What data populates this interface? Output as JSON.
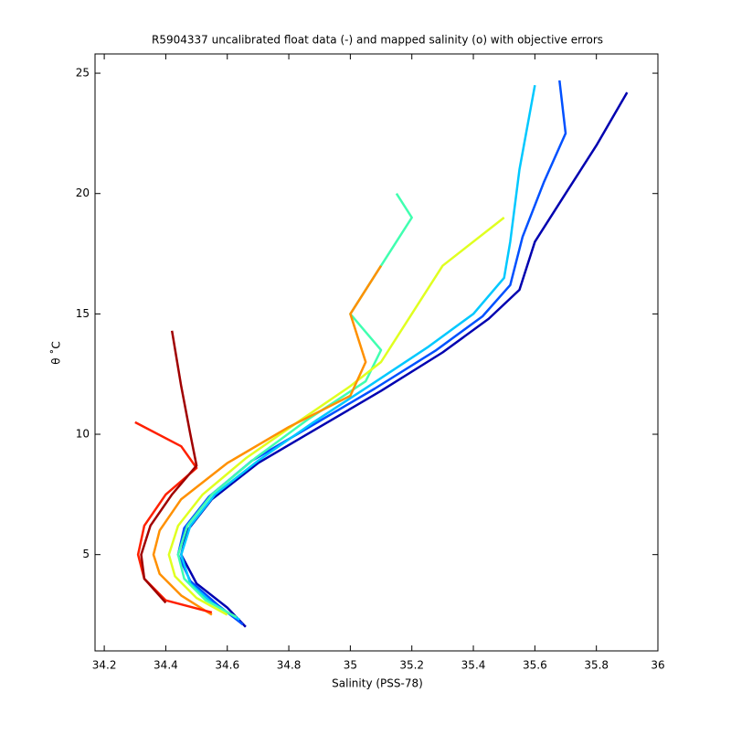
{
  "chart_data": {
    "type": "line",
    "title": "R5904337 uncalibrated float data (-) and mapped salinity (o) with objective errors",
    "x_label": "Salinity (PSS-78)",
    "y_label": "θ ˚C",
    "xlim": [
      34.17,
      36.0
    ],
    "ylim": [
      1,
      25.8
    ],
    "xticks": [
      34.2,
      34.4,
      34.6,
      34.8,
      35,
      35.2,
      35.4,
      35.6,
      35.8,
      36
    ],
    "yticks": [
      5,
      10,
      15,
      20,
      25
    ],
    "series": [
      {
        "color": "#0000b0",
        "x": [
          34.66,
          34.6,
          34.5,
          34.45,
          34.47,
          34.55,
          34.7,
          34.9,
          35.1,
          35.3,
          35.45,
          35.55,
          35.6,
          35.7,
          35.8,
          35.9
        ],
        "y": [
          2,
          2.8,
          3.8,
          5,
          6,
          7.3,
          8.8,
          10.3,
          11.8,
          13.4,
          14.8,
          16,
          18,
          20,
          22,
          24.2
        ]
      },
      {
        "color": "#0050ff",
        "x": [
          34.65,
          34.57,
          34.48,
          34.44,
          34.46,
          34.54,
          34.68,
          34.88,
          35.08,
          35.28,
          35.43,
          35.52,
          35.56,
          35.63,
          35.7,
          35.68
        ],
        "y": [
          2.1,
          2.9,
          3.9,
          5,
          6.1,
          7.4,
          8.9,
          10.4,
          11.9,
          13.5,
          14.9,
          16.2,
          18.2,
          20.5,
          22.5,
          24.7
        ]
      },
      {
        "color": "#00c8ff",
        "x": [
          34.64,
          34.55,
          34.48,
          34.45,
          34.48,
          34.56,
          34.7,
          34.88,
          35.06,
          35.25,
          35.4,
          35.5,
          35.52,
          35.55,
          35.6
        ],
        "y": [
          2.3,
          3,
          3.8,
          5,
          6.2,
          7.5,
          8.9,
          10.5,
          12,
          13.6,
          15,
          16.5,
          18,
          21,
          24.5
        ]
      },
      {
        "color": "#40ffb0",
        "x": [
          34.63,
          34.53,
          34.46,
          34.44,
          34.47,
          34.55,
          34.69,
          34.86,
          35.05,
          35.1,
          35.0,
          35.1,
          35.2,
          35.15
        ],
        "y": [
          2.4,
          3.1,
          4,
          5,
          6.2,
          7.5,
          9,
          10.6,
          12.2,
          13.5,
          15,
          17,
          19,
          20
        ]
      },
      {
        "color": "#e0ff20",
        "x": [
          34.6,
          34.5,
          34.43,
          34.41,
          34.44,
          34.52,
          34.66,
          34.84,
          35.0,
          35.1,
          35.3,
          35.5
        ],
        "y": [
          2.5,
          3.2,
          4.1,
          5,
          6.2,
          7.5,
          9,
          10.6,
          12,
          13,
          17,
          19
        ]
      },
      {
        "color": "#ff9000",
        "x": [
          34.55,
          34.45,
          34.38,
          34.36,
          34.38,
          34.45,
          34.6,
          34.8,
          35.0,
          35.05,
          35.0,
          35.1
        ],
        "y": [
          2.5,
          3.3,
          4.2,
          5,
          6,
          7.3,
          8.8,
          10.3,
          11.6,
          13,
          15,
          17
        ]
      },
      {
        "color": "#ff2000",
        "x": [
          34.55,
          34.4,
          34.33,
          34.31,
          34.33,
          34.4,
          34.5,
          34.45,
          34.3
        ],
        "y": [
          2.6,
          3.1,
          4,
          5,
          6.2,
          7.5,
          8.6,
          9.5,
          10.5
        ]
      },
      {
        "color": "#a00000",
        "x": [
          34.4,
          34.33,
          34.32,
          34.35,
          34.42,
          34.5,
          34.48,
          34.45,
          34.42
        ],
        "y": [
          3,
          4,
          5,
          6.2,
          7.5,
          8.7,
          10,
          12,
          14.3
        ]
      }
    ]
  }
}
